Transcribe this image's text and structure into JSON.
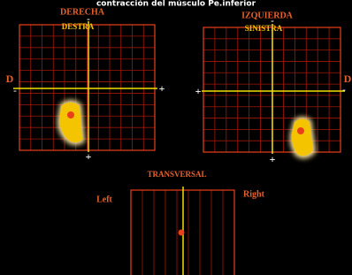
{
  "title": "contracción del músculo Pe.inferior",
  "left_panel": {
    "heading": "DERECHA",
    "subheading": "DESTRA",
    "side_label": "D",
    "top_sign": "-",
    "bottom_sign": "+",
    "left_sign": "-",
    "right_sign": "+"
  },
  "right_panel": {
    "heading": "IZQUIERDA",
    "subheading": "SINISTRA",
    "side_label": "D",
    "top_sign": "-",
    "bottom_sign": "+",
    "left_sign": "+",
    "right_sign": "-"
  },
  "bottom_panel": {
    "heading": "TRANSVERSAL",
    "left_label": "Left",
    "right_label": "Right"
  }
}
